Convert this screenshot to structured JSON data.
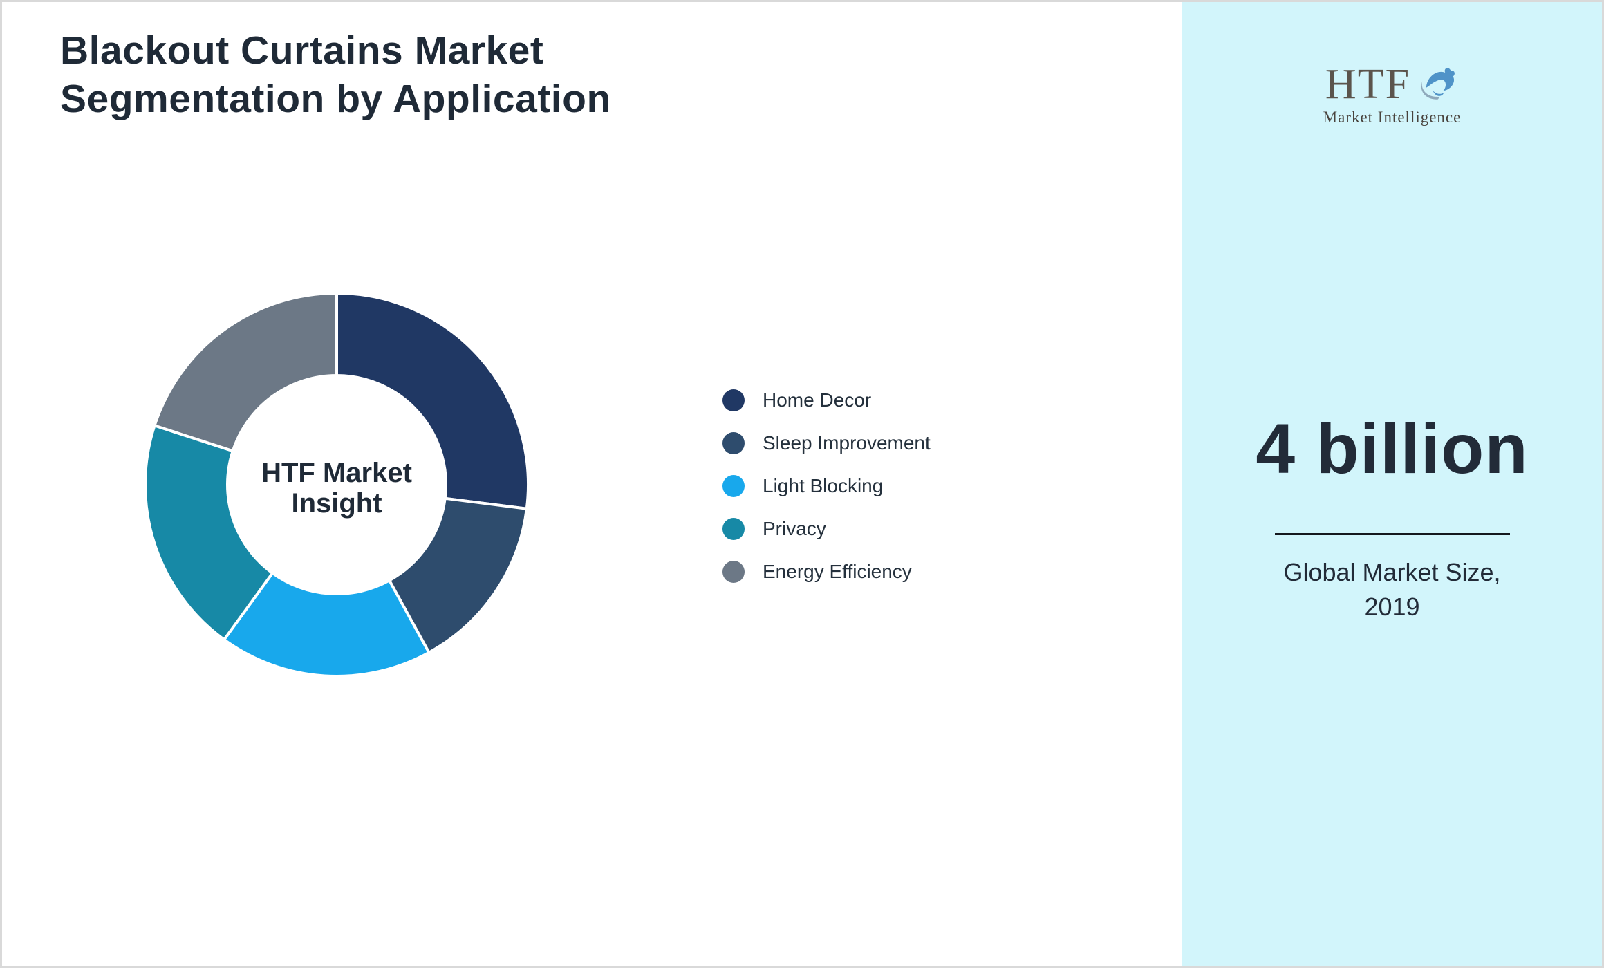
{
  "title": "Blackout Curtains Market Segmentation by Application",
  "chart_data": {
    "type": "pie",
    "subtype": "donut",
    "title": "Blackout Curtains Market Segmentation by Application",
    "center_label": "HTF Market Insight",
    "center_label_lines": [
      "HTF Market",
      "Insight"
    ],
    "legend_position": "right",
    "start_angle_deg": 0,
    "direction": "clockwise",
    "inner_radius_ratio": 0.57,
    "segments": [
      {
        "label": "Home Decor",
        "value": 27,
        "color": "#203864"
      },
      {
        "label": "Sleep Improvement",
        "value": 15,
        "color": "#2e4c6d"
      },
      {
        "label": "Light Blocking",
        "value": 18,
        "color": "#18a8ec"
      },
      {
        "label": "Privacy",
        "value": 20,
        "color": "#1789a6"
      },
      {
        "label": "Energy Efficiency",
        "value": 20,
        "color": "#6c7886"
      }
    ]
  },
  "sidebar": {
    "background_color": "#d2f5fb",
    "logo_text": "HTF",
    "logo_subtext": "Market Intelligence",
    "metric_value": "4 billion",
    "caption_lines": {
      "0": "Global Market Size,",
      "1": "2019"
    }
  },
  "colors": {
    "title_text": "#1f2a37",
    "legend_text": "#24303c",
    "divider": "#14181d"
  }
}
